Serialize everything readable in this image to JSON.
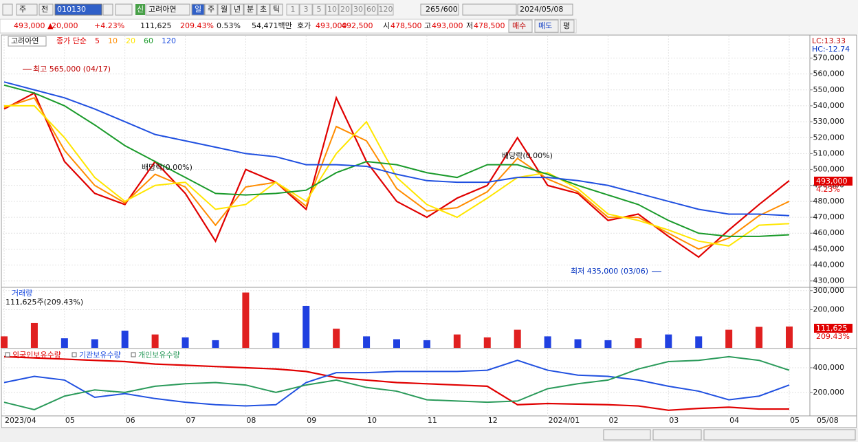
{
  "toolbar": {
    "market": "주",
    "scope": "전",
    "code": "010130",
    "badge": "신",
    "name": "고려아연",
    "periods": [
      "일",
      "주",
      "월",
      "년",
      "분",
      "초",
      "틱"
    ],
    "intervals": [
      "1",
      "3",
      "5",
      "10",
      "20",
      "30",
      "60",
      "120"
    ],
    "count": "265",
    "max": "/600",
    "date": "2024/05/08"
  },
  "quote": {
    "price": "493,000 ▲",
    "change": "20,000",
    "change_pct": "+4.23%",
    "volume": "111,625",
    "volume_pct": "209.43%",
    "turnover": "0.53%",
    "amount": "54,471백만",
    "ask_label": "호가",
    "ask": "493,000",
    "bid": "492,500",
    "open_label": "시",
    "open": "478,500",
    "high_label": "고",
    "high": "493,000",
    "low_label": "저",
    "low": "478,500",
    "buy": "매수",
    "sell": "매도",
    "avg": "평"
  },
  "chart_data": [
    {
      "type": "line",
      "title": "고려아연",
      "legend_title": "종가 단순",
      "categories": [
        "2023/04",
        null,
        "05",
        null,
        "06",
        null,
        "07",
        null,
        "08",
        null,
        "09",
        null,
        "10",
        null,
        "11",
        null,
        "12",
        null,
        "2024/01",
        null,
        "02",
        null,
        "03",
        null,
        "04",
        null,
        "05"
      ],
      "x_end_label": "05/08",
      "series": [
        {
          "name": "5",
          "color": "#e00000",
          "values": [
            538000,
            548000,
            505000,
            485000,
            478000,
            505000,
            485000,
            455000,
            500000,
            492000,
            475000,
            545000,
            505000,
            480000,
            470000,
            482000,
            490000,
            520000,
            490000,
            485000,
            468000,
            472000,
            458000,
            445000,
            462000,
            478000,
            493000
          ]
        },
        {
          "name": "10",
          "color": "#ff8c00",
          "values": [
            539000,
            545000,
            512000,
            490000,
            479000,
            497000,
            489000,
            465000,
            489000,
            492000,
            477000,
            527000,
            518000,
            488000,
            474000,
            476000,
            486000,
            507000,
            494000,
            486000,
            470000,
            470000,
            460000,
            450000,
            457000,
            471000,
            480000
          ]
        },
        {
          "name": "20",
          "color": "#ffe600",
          "values": [
            540000,
            540000,
            520000,
            495000,
            480000,
            490000,
            492000,
            475000,
            478000,
            492000,
            480000,
            510000,
            530000,
            495000,
            478000,
            470000,
            482000,
            495000,
            498000,
            488000,
            472000,
            468000,
            462000,
            455000,
            452000,
            465000,
            466000
          ]
        },
        {
          "name": "60",
          "color": "#1a9a2a",
          "values": [
            553000,
            548000,
            540000,
            528000,
            515000,
            505000,
            495000,
            485000,
            484000,
            485000,
            487000,
            498000,
            505000,
            503000,
            498000,
            495000,
            503000,
            503000,
            497000,
            490000,
            484000,
            478000,
            468000,
            460000,
            458000,
            458000,
            459000
          ]
        },
        {
          "name": "120",
          "color": "#2050e0",
          "values": [
            555000,
            550000,
            545000,
            538000,
            530000,
            522000,
            518000,
            514000,
            510000,
            508000,
            503000,
            503000,
            502000,
            497000,
            493000,
            492000,
            492000,
            495000,
            495000,
            493000,
            490000,
            485000,
            480000,
            475000,
            472000,
            472000,
            471000
          ]
        }
      ],
      "ylim": [
        426000,
        584000
      ],
      "yticks": [
        {
          "value": 430000,
          "label": "430,000"
        },
        {
          "value": 440000,
          "label": "440,000"
        },
        {
          "value": 450000,
          "label": "450,000"
        },
        {
          "value": 460000,
          "label": "460,000"
        },
        {
          "value": 470000,
          "label": "470,000"
        },
        {
          "value": 480000,
          "label": "480,000"
        },
        {
          "value": 490000,
          "label": "490,000"
        },
        {
          "value": 500000,
          "label": "500,000"
        },
        {
          "value": 510000,
          "label": "510,000"
        },
        {
          "value": 520000,
          "label": "520,000"
        },
        {
          "value": 530000,
          "label": "530,000"
        },
        {
          "value": 540000,
          "label": "540,000"
        },
        {
          "value": 550000,
          "label": "550,000"
        },
        {
          "value": 560000,
          "label": "560,000"
        },
        {
          "value": 570000,
          "label": "570,000"
        }
      ],
      "annotations": {
        "high": "최고 565,000 (04/17)",
        "low": "최저 435,000 (03/06)",
        "dividend1": "배당락(0.00%)",
        "dividend2": "배당락(0.00%)",
        "lc": "LC:13.33",
        "hc": "HC:-12.74",
        "last_price": "493,000",
        "last_pct": "4.23%"
      },
      "grid": true
    },
    {
      "type": "bar",
      "title": "거래량",
      "subtitle": "111,625주(209.43%)",
      "values": [
        60000,
        130000,
        50000,
        45000,
        90000,
        70000,
        55000,
        40000,
        290000,
        80000,
        220000,
        100000,
        60000,
        45000,
        40000,
        70000,
        55000,
        95000,
        60000,
        45000,
        40000,
        50000,
        70000,
        60000,
        95000,
        110000,
        111625
      ],
      "ylim": [
        0,
        310000
      ],
      "yticks": [
        {
          "value": 200000,
          "label": "200,000"
        },
        {
          "value": 300000,
          "label": "300,000"
        }
      ],
      "last_value": "111,625",
      "last_pct": "209.43%",
      "grid": true
    },
    {
      "type": "line",
      "series": [
        {
          "name": "외국인보유수량",
          "color": "#e00000",
          "values": [
            490000,
            480000,
            470000,
            460000,
            450000,
            430000,
            420000,
            410000,
            400000,
            390000,
            370000,
            320000,
            300000,
            280000,
            270000,
            260000,
            250000,
            100000,
            110000,
            105000,
            100000,
            90000,
            55000,
            70000,
            80000,
            65000,
            65000
          ]
        },
        {
          "name": "기관보유수량",
          "color": "#2050e0",
          "values": [
            280000,
            330000,
            300000,
            160000,
            190000,
            150000,
            120000,
            100000,
            90000,
            100000,
            280000,
            360000,
            360000,
            370000,
            370000,
            370000,
            380000,
            460000,
            380000,
            340000,
            330000,
            300000,
            250000,
            210000,
            140000,
            170000,
            260000
          ]
        },
        {
          "name": "개인보유수량",
          "color": "#2a9a5a",
          "values": [
            120000,
            60000,
            170000,
            220000,
            200000,
            250000,
            270000,
            280000,
            260000,
            200000,
            260000,
            300000,
            240000,
            210000,
            140000,
            130000,
            120000,
            130000,
            230000,
            270000,
            300000,
            390000,
            450000,
            460000,
            490000,
            460000,
            380000
          ]
        }
      ],
      "ylim": [
        15000,
        545000
      ],
      "yticks": [
        {
          "value": 200000,
          "label": "200,000"
        },
        {
          "value": 400000,
          "label": "400,000"
        }
      ],
      "grid": true
    }
  ]
}
